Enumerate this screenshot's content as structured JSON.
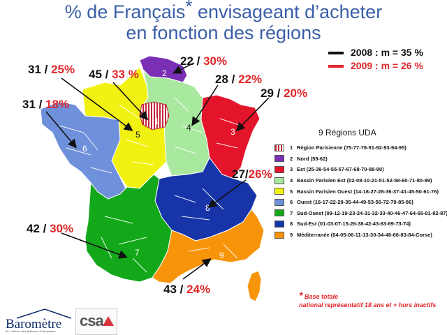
{
  "title": {
    "line1_a": "% de Français",
    "star": "*",
    "line1_b": " envisageant d’acheter",
    "line2": "en fonction des régions"
  },
  "legend_years": [
    {
      "label": "2008 : m = 35 %",
      "color": "#111111"
    },
    {
      "label": "2009 : m = 26 %",
      "color": "#e0262a"
    }
  ],
  "map_region_numbers": [
    "1",
    "2",
    "3",
    "4",
    "5",
    "6",
    "7",
    "8",
    "9"
  ],
  "region_colors": {
    "r1": "#c3243a",
    "r2": "#7a2fb5",
    "r3": "#e4152b",
    "r4": "#a9e89f",
    "r5": "#f2f212",
    "r6": "#6f90da",
    "r7": "#13a81a",
    "r8": "#1735a8",
    "r9": "#f7940a",
    "corse": "#f7940a"
  },
  "values": [
    {
      "region": "1",
      "v2008": "45",
      "sep": " / ",
      "v2009": "33 %"
    },
    {
      "region": "2",
      "v2008": "22",
      "sep": " / ",
      "v2009": "30%"
    },
    {
      "region": "3",
      "v2008": "29",
      "sep": " / ",
      "v2009": "20%"
    },
    {
      "region": "4",
      "v2008": "28",
      "sep": " / ",
      "v2009": "22%"
    },
    {
      "region": "5",
      "v2008": "31",
      "sep": " / ",
      "v2009": "25%"
    },
    {
      "region": "6",
      "v2008": "31",
      "sep": " / ",
      "v2009": "18%"
    },
    {
      "region": "7",
      "v2008": "42",
      "sep": " / ",
      "v2009": "30%"
    },
    {
      "region": "8",
      "v2008": "27",
      "sep": "/",
      "v2009": "26%"
    },
    {
      "region": "9",
      "v2008": "43",
      "sep": " / ",
      "v2009": "24%"
    }
  ],
  "uda_legend": {
    "title": "9 Régions UDA",
    "items": [
      {
        "num": "1",
        "text": "Région Parisienne (75-77-78-91-92-93-94-95)",
        "color": "#c3243a"
      },
      {
        "num": "2",
        "text": "Nord (59-62)",
        "color": "#7a2fb5"
      },
      {
        "num": "3",
        "text": "Est (25-39-54-55-57-67-68-70-88-90)",
        "color": "#e4152b"
      },
      {
        "num": "4",
        "text": "Bassin Parisien Est (02-08-10-21-51-52-58-60-71-80-89)",
        "color": "#a9e89f"
      },
      {
        "num": "5",
        "text": "Bassin Parisien Ouest (14-18-27-28-36-37-41-45-50-61-76)",
        "color": "#f2f212"
      },
      {
        "num": "6",
        "text": "Ouest (16-17-22-29-35-44-49-53-56-72-79-85-86)",
        "color": "#6f90da"
      },
      {
        "num": "7",
        "text": "Sud-Ouest (09-12-19-23-24-31-32-33-40-46-47-64-65-81-82-87)",
        "color": "#13a81a"
      },
      {
        "num": "8",
        "text": "Sud-Est (01-03-07-15-26-38-42-43-63-69-73-74)",
        "color": "#1735a8"
      },
      {
        "num": "9",
        "text": "Méditerranée (04-05-06-11-13-30-34-48-66-83-84-Corse)",
        "color": "#f7940a"
      }
    ]
  },
  "footnote": {
    "star": "*",
    "line1": "Base totale",
    "line2": "national représentatif 18 ans et +  hors inactifs"
  },
  "logos": {
    "barometre": "Baromètre",
    "barometre_sub": "de l’Union des Maisons Françaises",
    "csa": "csa"
  }
}
